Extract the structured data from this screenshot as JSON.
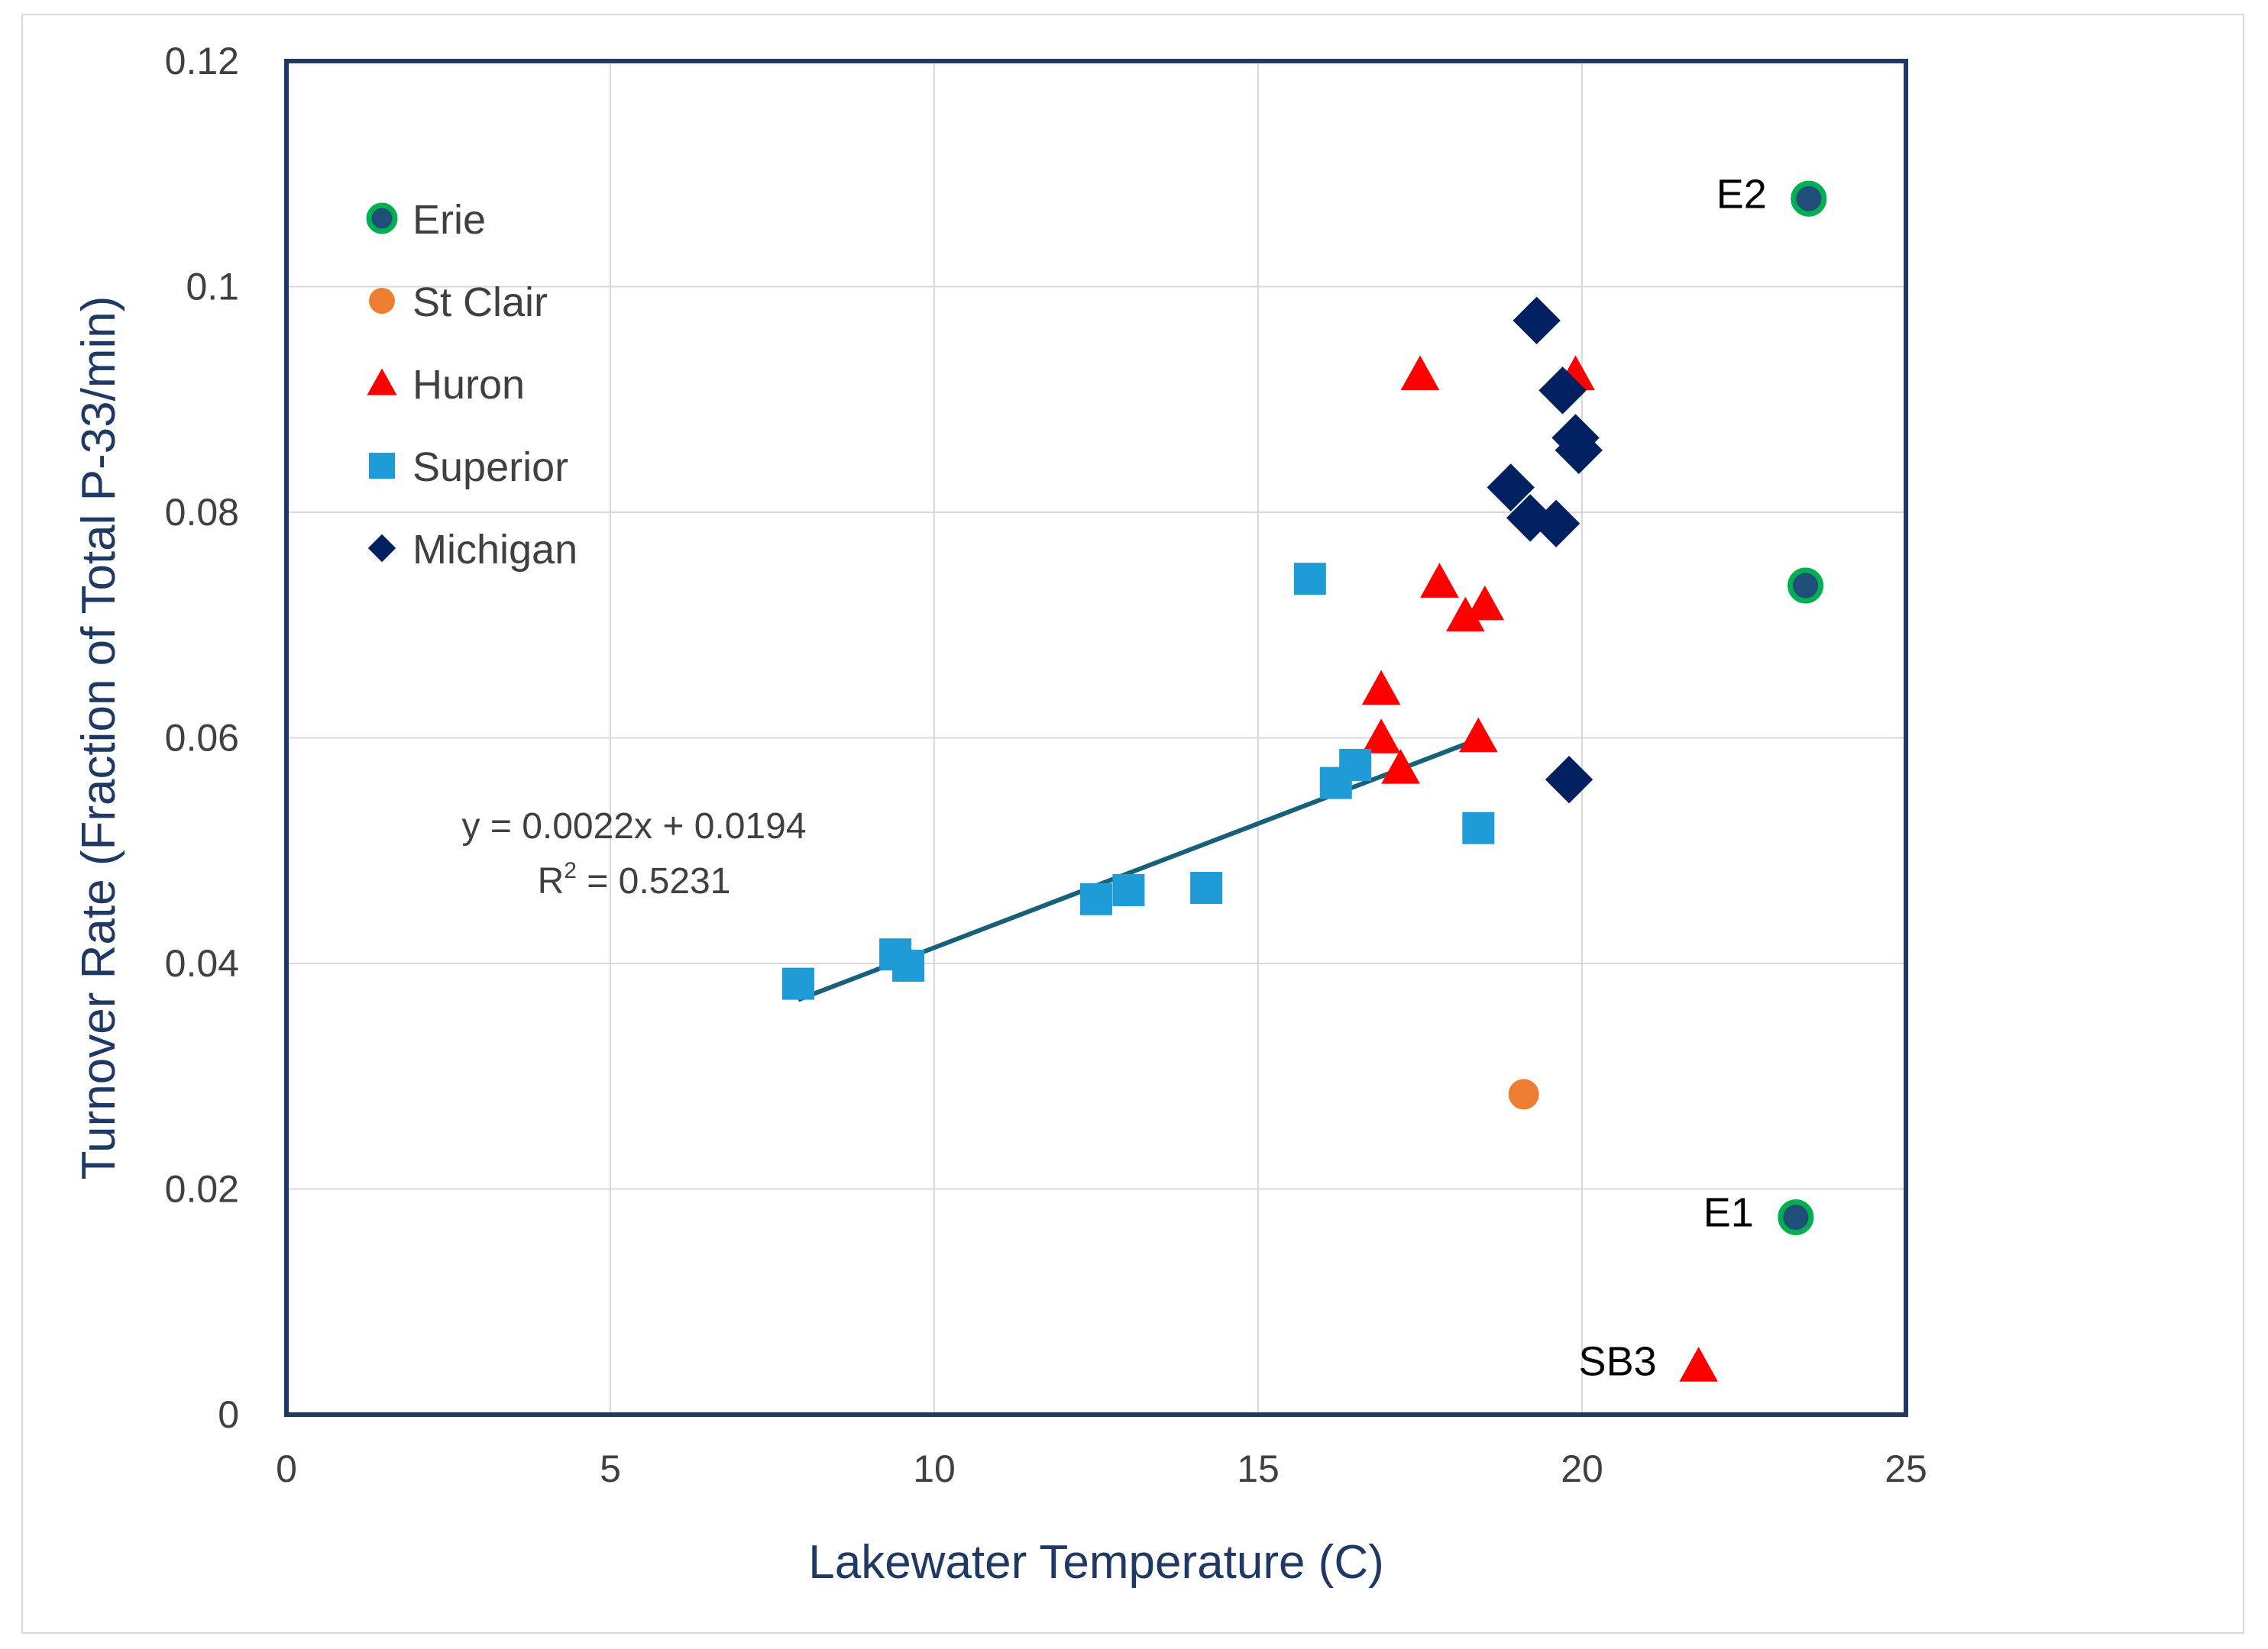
{
  "chart_data": {
    "type": "scatter",
    "title": "",
    "xlabel": "Lakewater Temperature (C)",
    "ylabel": "Turnover Rate (Fraction of Total P-33/min)",
    "xlim": [
      0,
      25
    ],
    "ylim": [
      0,
      0.12
    ],
    "xticks": [
      0,
      5,
      10,
      15,
      20,
      25
    ],
    "xtick_labels": [
      "0",
      "5",
      "10",
      "15",
      "20",
      "25"
    ],
    "yticks": [
      0,
      0.02,
      0.04,
      0.06,
      0.08,
      0.1,
      0.12
    ],
    "ytick_labels": [
      "0",
      "0.02",
      "0.04",
      "0.06",
      "0.08",
      "0.1",
      "0.12"
    ],
    "grid": true,
    "legend_position": "upper-left",
    "series": [
      {
        "name": "Erie",
        "marker": "circle",
        "color": "#1f4e79",
        "edge_color": "#00b050",
        "points": [
          [
            23.5,
            0.1078
          ],
          [
            23.45,
            0.0735
          ],
          [
            23.3,
            0.0175
          ]
        ]
      },
      {
        "name": "St Clair",
        "marker": "circle",
        "color": "#ed7d31",
        "points": [
          [
            19.1,
            0.0284
          ]
        ]
      },
      {
        "name": "Huron",
        "marker": "triangle",
        "color": "#ff0000",
        "points": [
          [
            17.5,
            0.0922
          ],
          [
            19.9,
            0.0922
          ],
          [
            17.8,
            0.0738
          ],
          [
            18.2,
            0.0708
          ],
          [
            18.5,
            0.0718
          ],
          [
            16.9,
            0.0643
          ],
          [
            16.9,
            0.06
          ],
          [
            17.2,
            0.0573
          ],
          [
            18.4,
            0.0601
          ],
          [
            21.8,
            0.0043
          ]
        ]
      },
      {
        "name": "Superior",
        "marker": "square",
        "color": "#1f9bd7",
        "points": [
          [
            7.9,
            0.0382
          ],
          [
            9.4,
            0.0408
          ],
          [
            9.6,
            0.0398
          ],
          [
            12.5,
            0.0457
          ],
          [
            13.0,
            0.0465
          ],
          [
            14.2,
            0.0467
          ],
          [
            15.8,
            0.0741
          ],
          [
            16.2,
            0.056
          ],
          [
            16.5,
            0.0576
          ],
          [
            18.4,
            0.052
          ]
        ]
      },
      {
        "name": "Michigan",
        "marker": "diamond",
        "color": "#002060",
        "points": [
          [
            19.3,
            0.097
          ],
          [
            19.7,
            0.0908
          ],
          [
            19.9,
            0.0866
          ],
          [
            19.95,
            0.0855
          ],
          [
            18.9,
            0.0822
          ],
          [
            19.2,
            0.0795
          ],
          [
            19.6,
            0.079
          ],
          [
            19.8,
            0.0563
          ]
        ]
      }
    ],
    "trendline": {
      "series": "Superior",
      "x_range": [
        7.9,
        18.4
      ],
      "slope": 0.0022,
      "intercept": 0.0194,
      "color": "#17607a"
    },
    "annotations": [
      {
        "text": "E2",
        "x": 23.5,
        "y": 0.1078
      },
      {
        "text": "E1",
        "x": 23.3,
        "y": 0.0175
      },
      {
        "text": "SB3",
        "x": 21.8,
        "y": 0.0043
      }
    ],
    "equation_label": "y = 0.0022x + 0.0194",
    "r2_prefix": "R",
    "r2_superscript": "2",
    "r2_value": " = 0.5231"
  }
}
